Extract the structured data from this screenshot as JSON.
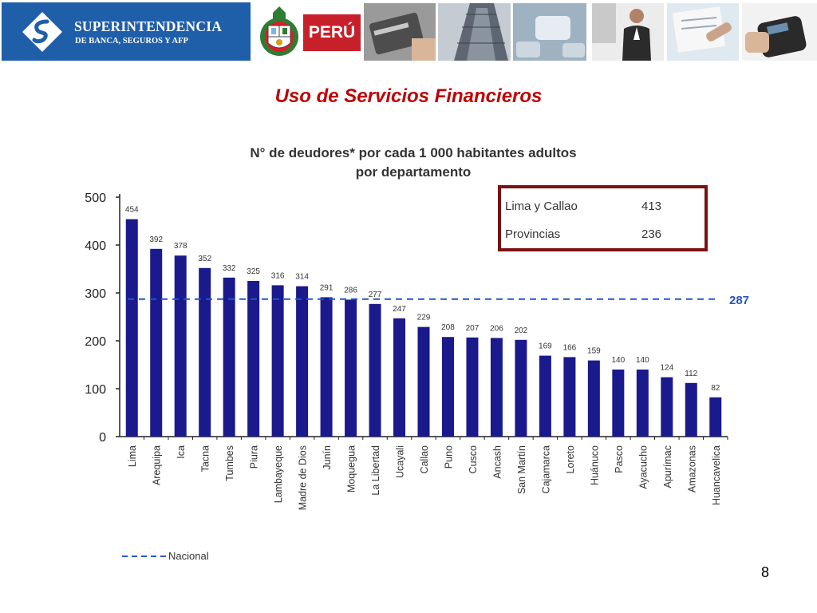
{
  "header": {
    "logo_line1": "SUPERINTENDENCIA",
    "logo_line2": "DE BANCA, SEGUROS Y AFP",
    "country_label": "PERÚ"
  },
  "slide": {
    "title": "Uso de Servicios Financieros",
    "page_number": "8"
  },
  "colors": {
    "bar": "#1a1a8c",
    "reference_line": "#2255cc",
    "inset_border": "#7a1212",
    "title": "#c00000",
    "logo_bg": "#1f5ea8",
    "peru_red": "#c8202a"
  },
  "chart_data": {
    "type": "bar",
    "title": "N° de deudores* por cada 1 000 habitantes adultos",
    "subtitle": "por departamento",
    "categories": [
      "Lima",
      "Arequipa",
      "Ica",
      "Tacna",
      "Tumbes",
      "Piura",
      "Lambayeque",
      "Madre de Dios",
      "Junín",
      "Moquegua",
      "La Libertad",
      "Ucayali",
      "Callao",
      "Puno",
      "Cusco",
      "Ancash",
      "San Martín",
      "Cajamarca",
      "Loreto",
      "Huánuco",
      "Pasco",
      "Ayacucho",
      "Apurímac",
      "Amazonas",
      "Huancavelica"
    ],
    "values": [
      454,
      392,
      378,
      352,
      332,
      325,
      316,
      314,
      291,
      286,
      277,
      247,
      229,
      208,
      207,
      206,
      202,
      169,
      166,
      159,
      140,
      140,
      124,
      112,
      82
    ],
    "data_labels": [
      "454",
      "392",
      "378",
      "352",
      "332",
      "325",
      "316",
      "314",
      "291",
      "286",
      "277",
      "247",
      "229",
      "208",
      "207",
      "206",
      "202",
      "169",
      "166",
      "159",
      "140",
      "140",
      "124",
      "112",
      "82"
    ],
    "ylim": [
      0,
      500
    ],
    "yticks": [
      0,
      100,
      200,
      300,
      400,
      500
    ],
    "reference_line": {
      "name": "Nacional",
      "value": 287,
      "label": "287"
    },
    "inset_table": [
      {
        "label": "Lima y Callao",
        "value": "413"
      },
      {
        "label": "Provincias",
        "value": "236"
      }
    ],
    "legend": {
      "label": "Nacional",
      "position": "bottom-left"
    },
    "grid": false
  }
}
